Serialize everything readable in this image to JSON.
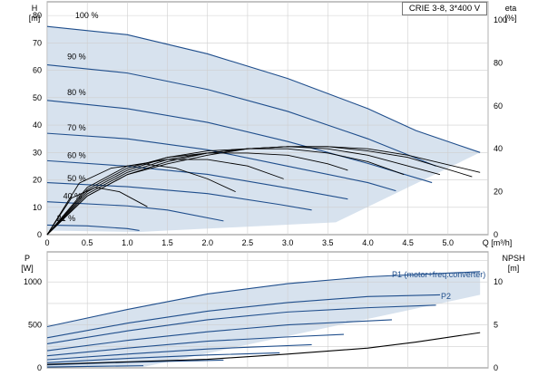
{
  "title": "CRIE 3-8, 3*400 V",
  "chart_data": [
    {
      "type": "line",
      "title": "CRIE 3-8, 3*400 V",
      "xlabel": "Q [m³/h]",
      "xlim": [
        0,
        5.5
      ],
      "x_ticks": [
        "0",
        "0.5",
        "1.0",
        "1.5",
        "2.0",
        "2.5",
        "3.0",
        "3.5",
        "4.0",
        "4.5",
        "5.0",
        "Q [m³/h]"
      ],
      "y_axes": {
        "left": {
          "label": "H",
          "unit": "[m]",
          "ylim": [
            0,
            85
          ],
          "ticks": [
            "0",
            "10",
            "20",
            "30",
            "40",
            "50",
            "60",
            "70",
            "80"
          ]
        },
        "right": {
          "label": "eta",
          "unit": "[%]",
          "ylim": [
            0,
            100
          ],
          "ticks": [
            "0",
            "20",
            "40",
            "60",
            "80",
            "100"
          ]
        }
      },
      "grid": true,
      "speed_labels": [
        "100 %",
        "90 %",
        "80 %",
        "70 %",
        "60 %",
        "50 %",
        "40 %",
        "21 %"
      ],
      "series": [
        {
          "name": "100 %",
          "kind": "head",
          "x": [
            0,
            1,
            2,
            3,
            4,
            4.6,
            5.4
          ],
          "y": [
            76,
            73,
            66,
            57,
            46,
            38,
            30
          ]
        },
        {
          "name": "90 %",
          "kind": "head",
          "x": [
            0,
            1,
            2,
            3,
            4,
            4.85
          ],
          "y": [
            62,
            59,
            53,
            45,
            35,
            25
          ]
        },
        {
          "name": "80 %",
          "kind": "head",
          "x": [
            0,
            1,
            2,
            3,
            4,
            4.8
          ],
          "y": [
            49,
            46,
            41,
            34,
            26,
            19
          ]
        },
        {
          "name": "70 %",
          "kind": "head",
          "x": [
            0,
            1,
            2,
            3,
            4,
            4.35
          ],
          "y": [
            37,
            35,
            31,
            25,
            19,
            16
          ]
        },
        {
          "name": "60 %",
          "kind": "head",
          "x": [
            0,
            1,
            2,
            3,
            3.75
          ],
          "y": [
            27,
            25,
            22,
            17,
            13
          ]
        },
        {
          "name": "50 %",
          "kind": "head",
          "x": [
            0,
            1,
            2,
            2.9,
            3.3
          ],
          "y": [
            19,
            17.5,
            15,
            11,
            9
          ]
        },
        {
          "name": "40 %",
          "kind": "head",
          "x": [
            0,
            1,
            1.5,
            2.2
          ],
          "y": [
            12,
            10.5,
            9,
            5
          ]
        },
        {
          "name": "21 %",
          "kind": "head",
          "x": [
            0,
            0.5,
            1.0,
            1.15
          ],
          "y": [
            3.5,
            3.2,
            2.2,
            1.5
          ]
        },
        {
          "name": "eta 100 %",
          "kind": "eta",
          "x": [
            0,
            0.5,
            1,
            1.5,
            2,
            2.5,
            3,
            3.5,
            4,
            4.5,
            5.4
          ],
          "y": [
            0,
            18,
            28,
            33,
            37,
            40,
            41,
            41,
            40,
            37,
            29
          ]
        },
        {
          "name": "eta 90 %",
          "kind": "eta",
          "x": [
            0,
            0.5,
            1,
            1.5,
            2,
            2.5,
            3,
            3.5,
            4,
            4.5,
            5.3
          ],
          "y": [
            0,
            18,
            28,
            34,
            38,
            40,
            41,
            41,
            39,
            36,
            27
          ]
        },
        {
          "name": "eta 80 %",
          "kind": "eta",
          "x": [
            0,
            0.5,
            1,
            1.5,
            2,
            2.5,
            3,
            3.5,
            4,
            4.9
          ],
          "y": [
            0,
            19,
            29,
            35,
            38,
            40,
            41,
            40,
            37,
            28
          ]
        },
        {
          "name": "eta 70 %",
          "kind": "eta",
          "x": [
            0,
            0.5,
            1,
            1.5,
            2,
            2.5,
            3,
            3.5,
            4,
            4.45
          ],
          "y": [
            0,
            20,
            30,
            36,
            39,
            40,
            40,
            38,
            34,
            28
          ]
        },
        {
          "name": "eta 60 %",
          "kind": "eta",
          "x": [
            0,
            0.5,
            1,
            1.5,
            2,
            2.5,
            3,
            3.5,
            3.75
          ],
          "y": [
            0,
            21,
            31,
            36,
            38,
            38,
            37,
            33,
            30
          ]
        },
        {
          "name": "eta 50 %",
          "kind": "eta",
          "x": [
            0,
            0.5,
            1,
            1.5,
            2,
            2.5,
            2.95
          ],
          "y": [
            0,
            22,
            32,
            35,
            35,
            32,
            26
          ]
        },
        {
          "name": "eta 40 %",
          "kind": "eta",
          "x": [
            0,
            0.4,
            0.8,
            1.2,
            1.6,
            2.0,
            2.35
          ],
          "y": [
            0,
            24,
            31,
            33,
            31,
            26,
            20
          ]
        },
        {
          "name": "eta 21 %",
          "kind": "eta",
          "x": [
            0,
            0.3,
            0.6,
            0.9,
            1.25
          ],
          "y": [
            0,
            17,
            22,
            20,
            13
          ]
        }
      ]
    },
    {
      "type": "line",
      "xlabel": "Q [m³/h]",
      "xlim": [
        0,
        5.5
      ],
      "y_axes": {
        "left": {
          "label": "P",
          "unit": "[W]",
          "ylim": [
            0,
            1350
          ],
          "ticks": [
            "0",
            "500",
            "1000"
          ]
        },
        "right": {
          "label": "NPSH",
          "unit": "[m]",
          "ylim": [
            0,
            13.5
          ],
          "ticks": [
            "0",
            "5",
            "10"
          ]
        }
      },
      "grid": true,
      "series_labels": [
        "P1 (motor+freq.converter)",
        "P2"
      ],
      "series": [
        {
          "name": "P1 (motor+freq.converter)",
          "kind": "power",
          "x": [
            0,
            1,
            2,
            3,
            4,
            5.4
          ],
          "y": [
            480,
            680,
            860,
            980,
            1060,
            1120
          ]
        },
        {
          "name": "P2",
          "kind": "power",
          "x": [
            0,
            1,
            2,
            3,
            4,
            4.9
          ],
          "y": [
            350,
            520,
            660,
            760,
            830,
            850
          ]
        },
        {
          "name": "P1 90 %",
          "kind": "power",
          "x": [
            0,
            1,
            2,
            3,
            4,
            4.85
          ],
          "y": [
            280,
            430,
            560,
            650,
            700,
            730
          ]
        },
        {
          "name": "P1 80 %",
          "kind": "power",
          "x": [
            0,
            1,
            2,
            3,
            4.3
          ],
          "y": [
            200,
            320,
            420,
            500,
            560
          ]
        },
        {
          "name": "P1 70 %",
          "kind": "power",
          "x": [
            0,
            1,
            2,
            3,
            3.7
          ],
          "y": [
            140,
            230,
            310,
            360,
            390
          ]
        },
        {
          "name": "P1 60 %",
          "kind": "power",
          "x": [
            0,
            1,
            2,
            3.3
          ],
          "y": [
            95,
            160,
            220,
            270
          ]
        },
        {
          "name": "P1 50 %",
          "kind": "power",
          "x": [
            0,
            1,
            2,
            2.9
          ],
          "y": [
            60,
            110,
            150,
            175
          ]
        },
        {
          "name": "P1 40 %",
          "kind": "power",
          "x": [
            0,
            1,
            2.2
          ],
          "y": [
            35,
            65,
            90
          ]
        },
        {
          "name": "P1 21 %",
          "kind": "power",
          "x": [
            0,
            0.6,
            1.2
          ],
          "y": [
            10,
            18,
            25
          ]
        },
        {
          "name": "NPSH",
          "kind": "npsh",
          "x": [
            0,
            1,
            2,
            3,
            4,
            4.6,
            5.4
          ],
          "y": [
            0.4,
            0.7,
            1.0,
            1.6,
            2.3,
            3.0,
            4.1
          ]
        }
      ]
    }
  ]
}
